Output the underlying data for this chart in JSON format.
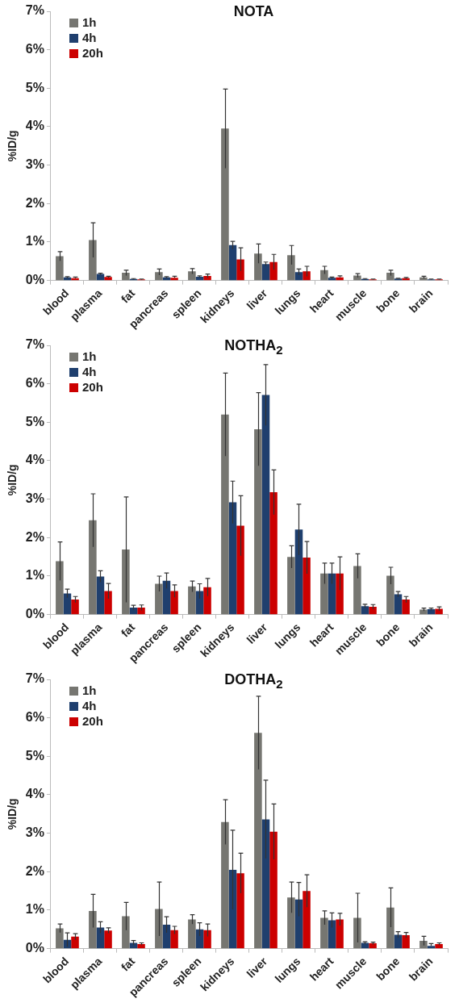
{
  "chart_data": [
    {
      "type": "bar",
      "title": "NOTA",
      "ylabel": "%ID/g",
      "legend": "top left",
      "grid": false,
      "categories": [
        "blood",
        "plasma",
        "fat",
        "pancreas",
        "spleen",
        "kidneys",
        "liver",
        "lungs",
        "heart",
        "muscle",
        "bone",
        "brain"
      ],
      "ylim": [
        0,
        7
      ],
      "yticks": [
        {
          "value": 0,
          "label": "0%"
        },
        {
          "value": 1,
          "label": "1%"
        },
        {
          "value": 2,
          "label": "2%"
        },
        {
          "value": 3,
          "label": "3%"
        },
        {
          "value": 4,
          "label": "4%"
        },
        {
          "value": 5,
          "label": "5%"
        },
        {
          "value": 6,
          "label": "6%"
        },
        {
          "value": 7,
          "label": "7%"
        }
      ],
      "series": [
        {
          "name": "1h",
          "color": "#767671",
          "values": [
            0.63,
            1.05,
            0.2,
            0.22,
            0.24,
            3.95,
            0.7,
            0.66,
            0.27,
            0.13,
            0.2,
            0.08
          ],
          "errors": [
            0.12,
            0.45,
            0.07,
            0.08,
            0.07,
            1.03,
            0.25,
            0.25,
            0.1,
            0.05,
            0.07,
            0.03
          ]
        },
        {
          "name": "4h",
          "color": "#1f3f6e",
          "values": [
            0.08,
            0.17,
            0.04,
            0.08,
            0.1,
            0.92,
            0.43,
            0.22,
            0.07,
            0.04,
            0.05,
            0.03
          ],
          "errors": [
            0.02,
            0.02,
            0.01,
            0.02,
            0.02,
            0.1,
            0.05,
            0.08,
            0.02,
            0.01,
            0.01,
            0.01
          ]
        },
        {
          "name": "20h",
          "color": "#cc0000",
          "values": [
            0.06,
            0.09,
            0.03,
            0.07,
            0.12,
            0.55,
            0.48,
            0.24,
            0.08,
            0.03,
            0.06,
            0.03
          ],
          "errors": [
            [
              0.06,
              0.09
            ],
            0.02,
            0.01,
            [
              0.07,
              0.11
            ],
            0.05,
            0.3,
            0.2,
            0.13,
            [
              0.08,
              0.12
            ],
            0.01,
            0.02,
            0.01
          ]
        }
      ]
    },
    {
      "type": "bar",
      "title": "NOTHA$_{2}$",
      "ylabel": "%ID/g",
      "legend": "top left",
      "grid": false,
      "categories": [
        "blood",
        "plasma",
        "fat",
        "pancreas",
        "spleen",
        "kidneys",
        "liver",
        "lungs",
        "heart",
        "muscle",
        "bone",
        "brain"
      ],
      "ylim": [
        0,
        7
      ],
      "yticks": [
        {
          "value": 0,
          "label": "0%"
        },
        {
          "value": 1,
          "label": "1%"
        },
        {
          "value": 2,
          "label": "2%"
        },
        {
          "value": 3,
          "label": "3%"
        },
        {
          "value": 4,
          "label": "4%"
        },
        {
          "value": 5,
          "label": "5%"
        },
        {
          "value": 6,
          "label": "6%"
        },
        {
          "value": 7,
          "label": "7%"
        }
      ],
      "series": [
        {
          "name": "1h",
          "color": "#767671",
          "values": [
            1.39,
            2.45,
            1.69,
            0.8,
            0.73,
            5.2,
            4.82,
            1.5,
            1.07,
            1.26,
            1.01,
            0.13
          ],
          "errors": [
            0.5,
            0.69,
            1.37,
            0.2,
            0.14,
            1.08,
            0.95,
            0.29,
            0.27,
            0.32,
            0.22,
            0.04
          ]
        },
        {
          "name": "4h",
          "color": "#1f3f6e",
          "values": [
            0.55,
            0.99,
            0.18,
            0.88,
            0.61,
            2.92,
            5.71,
            2.21,
            1.07,
            0.22,
            0.53,
            0.14
          ],
          "errors": [
            0.11,
            0.15,
            0.06,
            0.2,
            0.19,
            0.55,
            0.79,
            0.66,
            0.27,
            0.05,
            0.07,
            0.03
          ]
        },
        {
          "name": "20h",
          "color": "#cc0000",
          "values": [
            0.39,
            0.61,
            0.18,
            0.61,
            0.71,
            2.31,
            3.18,
            1.48,
            1.07,
            0.2,
            0.39,
            0.15
          ],
          "errors": [
            0.08,
            0.2,
            0.07,
            0.16,
            0.23,
            0.78,
            0.58,
            0.42,
            0.43,
            0.06,
            0.08,
            0.05
          ]
        }
      ]
    },
    {
      "type": "bar",
      "title": "DOTHA$_{2}$",
      "ylabel": "%ID/g",
      "legend": "top left",
      "grid": false,
      "categories": [
        "blood",
        "plasma",
        "fat",
        "pancreas",
        "spleen",
        "kidneys",
        "liver",
        "lungs",
        "heart",
        "muscle",
        "bone",
        "brain"
      ],
      "ylim": [
        0,
        7
      ],
      "yticks": [
        {
          "value": 0,
          "label": "0%"
        },
        {
          "value": 1,
          "label": "1%"
        },
        {
          "value": 2,
          "label": "2%"
        },
        {
          "value": 3,
          "label": "3%"
        },
        {
          "value": 4,
          "label": "4%"
        },
        {
          "value": 5,
          "label": "5%"
        },
        {
          "value": 6,
          "label": "6%"
        },
        {
          "value": 7,
          "label": "7%"
        }
      ],
      "series": [
        {
          "name": "1h",
          "color": "#767671",
          "values": [
            0.53,
            0.98,
            0.84,
            1.03,
            0.76,
            3.29,
            5.61,
            1.33,
            0.8,
            0.8,
            1.07,
            0.2
          ],
          "errors": [
            0.11,
            0.43,
            0.36,
            0.7,
            0.12,
            0.58,
            0.95,
            0.4,
            0.18,
            0.64,
            0.51,
            0.12
          ]
        },
        {
          "name": "4h",
          "color": "#1f3f6e",
          "values": [
            0.23,
            0.55,
            0.15,
            0.62,
            0.5,
            2.05,
            3.36,
            1.28,
            0.74,
            0.15,
            0.36,
            0.07
          ],
          "errors": [
            0.18,
            0.15,
            0.06,
            0.21,
            0.17,
            1.03,
            1.02,
            0.44,
            0.19,
            0.03,
            0.08,
            [
              0.07,
              0.13
            ]
          ]
        },
        {
          "name": "20h",
          "color": "#cc0000",
          "values": [
            0.31,
            0.47,
            0.12,
            0.48,
            0.48,
            1.96,
            3.04,
            1.5,
            0.76,
            0.14,
            0.35,
            0.12
          ],
          "errors": [
            0.08,
            0.07,
            0.03,
            0.1,
            0.16,
            0.52,
            0.72,
            0.42,
            0.16,
            0.03,
            0.07,
            0.03
          ]
        }
      ]
    }
  ]
}
